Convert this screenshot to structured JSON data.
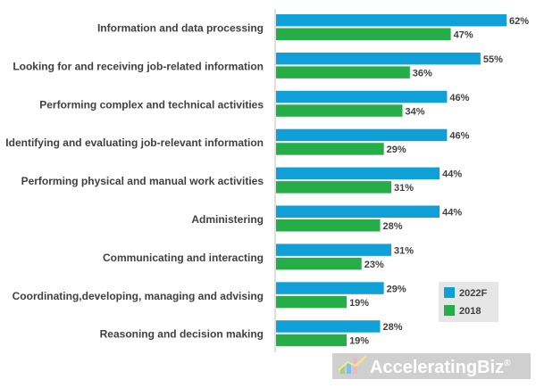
{
  "chart_data": {
    "type": "bar",
    "orientation": "horizontal",
    "title": "",
    "xlabel": "",
    "ylabel": "",
    "categories": [
      "Information and data processing",
      "Looking for and receiving job-related information",
      "Performing complex and technical activities",
      "Identifying and evaluating job-relevant information",
      "Performing physical and manual work activities",
      "Administering",
      "Communicating and interacting",
      "Coordinating,developing, managing and advising",
      "Reasoning and decision making"
    ],
    "series": [
      {
        "name": "2022F",
        "color": "#0fa0d8",
        "values": [
          62,
          55,
          46,
          46,
          44,
          44,
          31,
          29,
          28
        ]
      },
      {
        "name": "2018",
        "color": "#25ad48",
        "values": [
          47,
          36,
          34,
          29,
          31,
          28,
          23,
          19,
          19
        ]
      }
    ],
    "value_suffix": "%",
    "xlim": [
      0,
      62
    ],
    "grid": false,
    "legend_position": "bottom-right"
  },
  "watermark": {
    "text_primary": "Accelerating",
    "text_secondary": "Biz",
    "registered_mark": "®"
  }
}
